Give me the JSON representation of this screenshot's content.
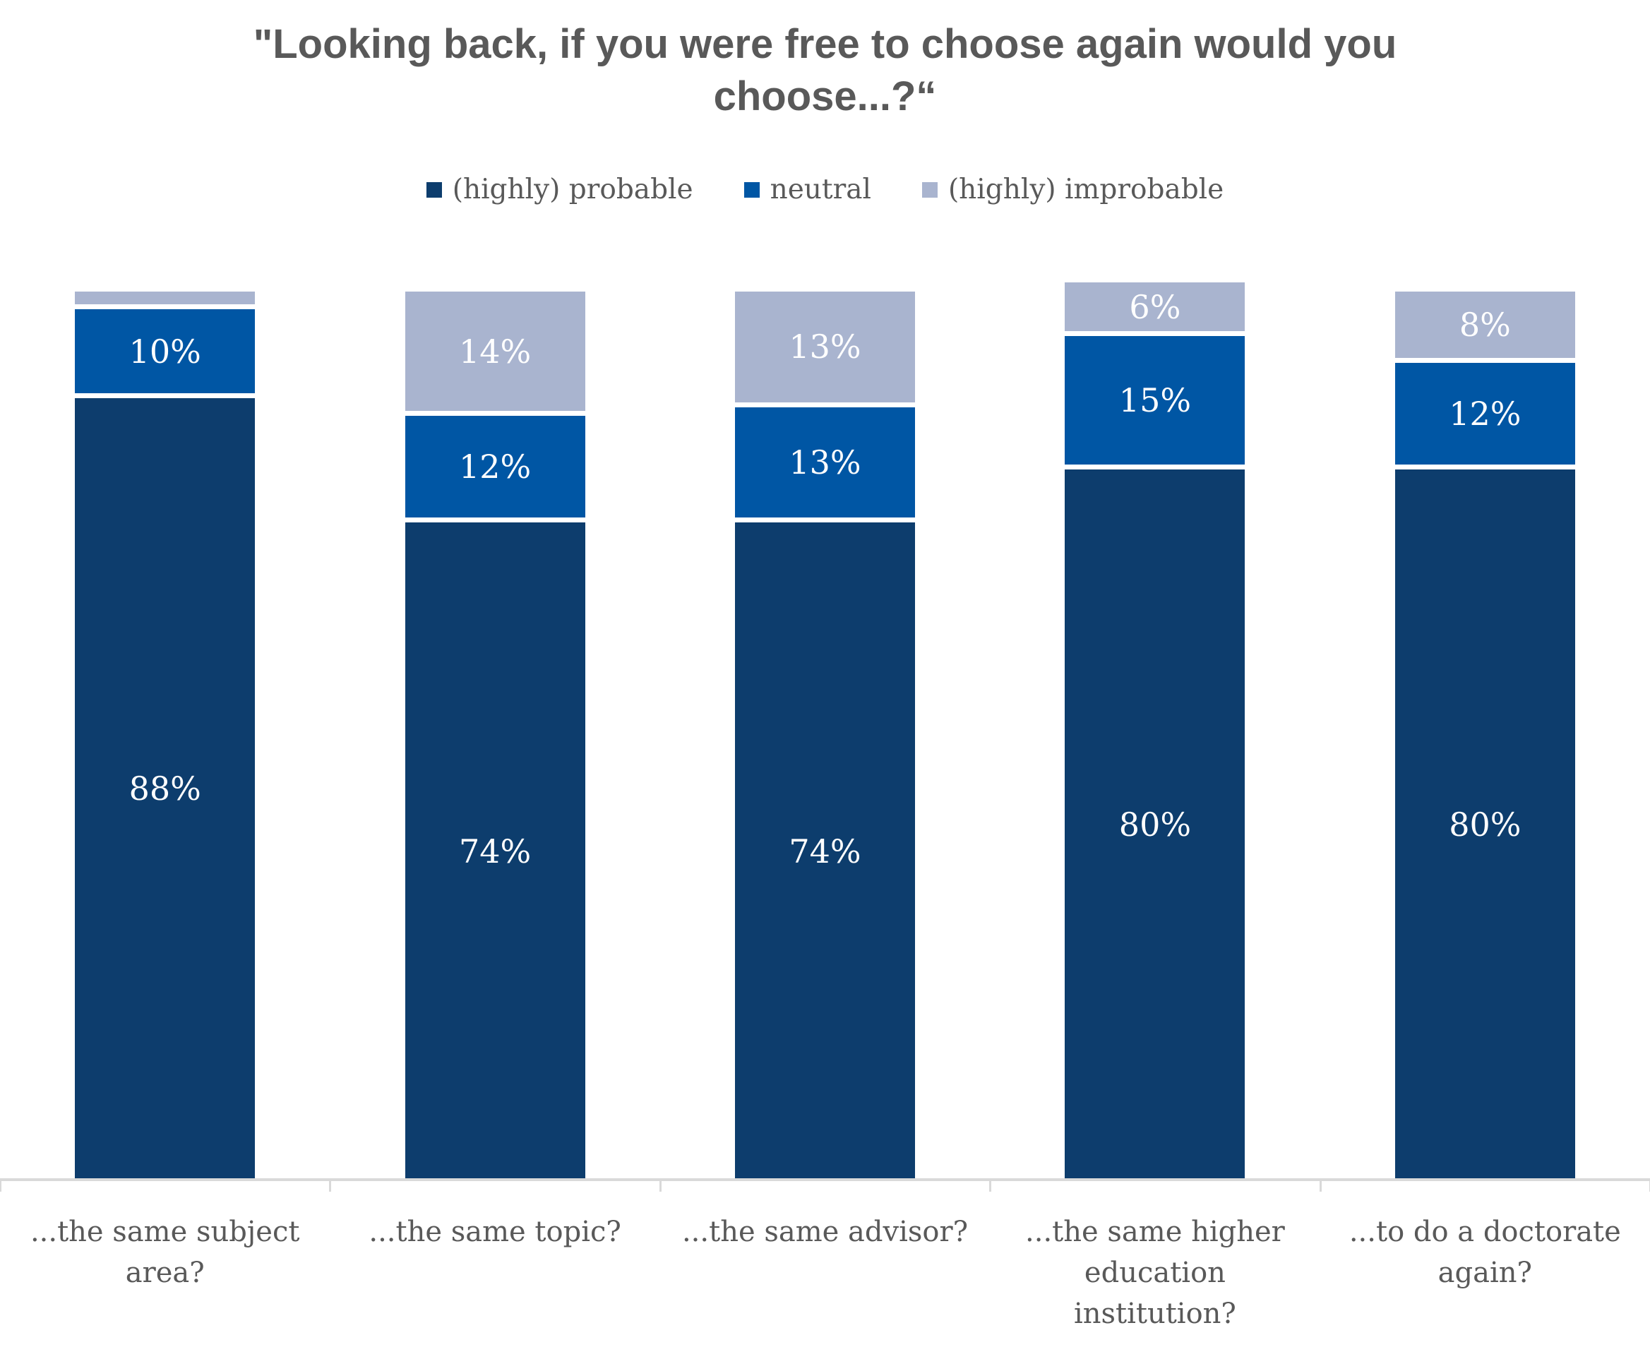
{
  "title": "\"Looking back, if you were free to choose again would you choose...?“",
  "colors": {
    "title_text": "#595959",
    "axis_label_text": "#595959",
    "legend_text": "#595959",
    "bar_value_text": "#ffffff",
    "axis_line": "#d9d9d9",
    "background": "#ffffff",
    "probable": "#0d3d6d",
    "neutral": "#0056a4",
    "improbable": "#a9b4cf"
  },
  "legend": {
    "items": [
      {
        "label": "(highly) probable",
        "color": "#0d3d6d"
      },
      {
        "label": "neutral",
        "color": "#0056a4"
      },
      {
        "label": "(highly) improbable",
        "color": "#a9b4cf"
      }
    ]
  },
  "chart_data": {
    "type": "bar",
    "stacked": true,
    "orientation": "vertical",
    "title": "\"Looking back, if you were free to choose again would you choose...?“",
    "categories": [
      "...the same subject area?",
      "...the same topic?",
      "...the same advisor?",
      "...the same higher education institution?",
      "...to do a doctorate again?"
    ],
    "series": [
      {
        "name": "(highly) probable",
        "color": "#0d3d6d",
        "values": [
          88,
          74,
          74,
          80,
          80
        ],
        "labels": [
          "88%",
          "74%",
          "74%",
          "80%",
          "80%"
        ]
      },
      {
        "name": "neutral",
        "color": "#0056a4",
        "values": [
          10,
          12,
          13,
          15,
          12
        ],
        "labels": [
          "10%",
          "12%",
          "13%",
          "15%",
          "12%"
        ]
      },
      {
        "name": "(highly) improbable",
        "color": "#a9b4cf",
        "values": [
          2,
          14,
          13,
          6,
          8
        ],
        "labels": [
          "",
          "14%",
          "13%",
          "6%",
          "8%"
        ]
      }
    ],
    "value_suffix": "%",
    "ylim": [
      0,
      100
    ],
    "grid": false,
    "y_axis_visible": false,
    "legend_position": "top"
  }
}
